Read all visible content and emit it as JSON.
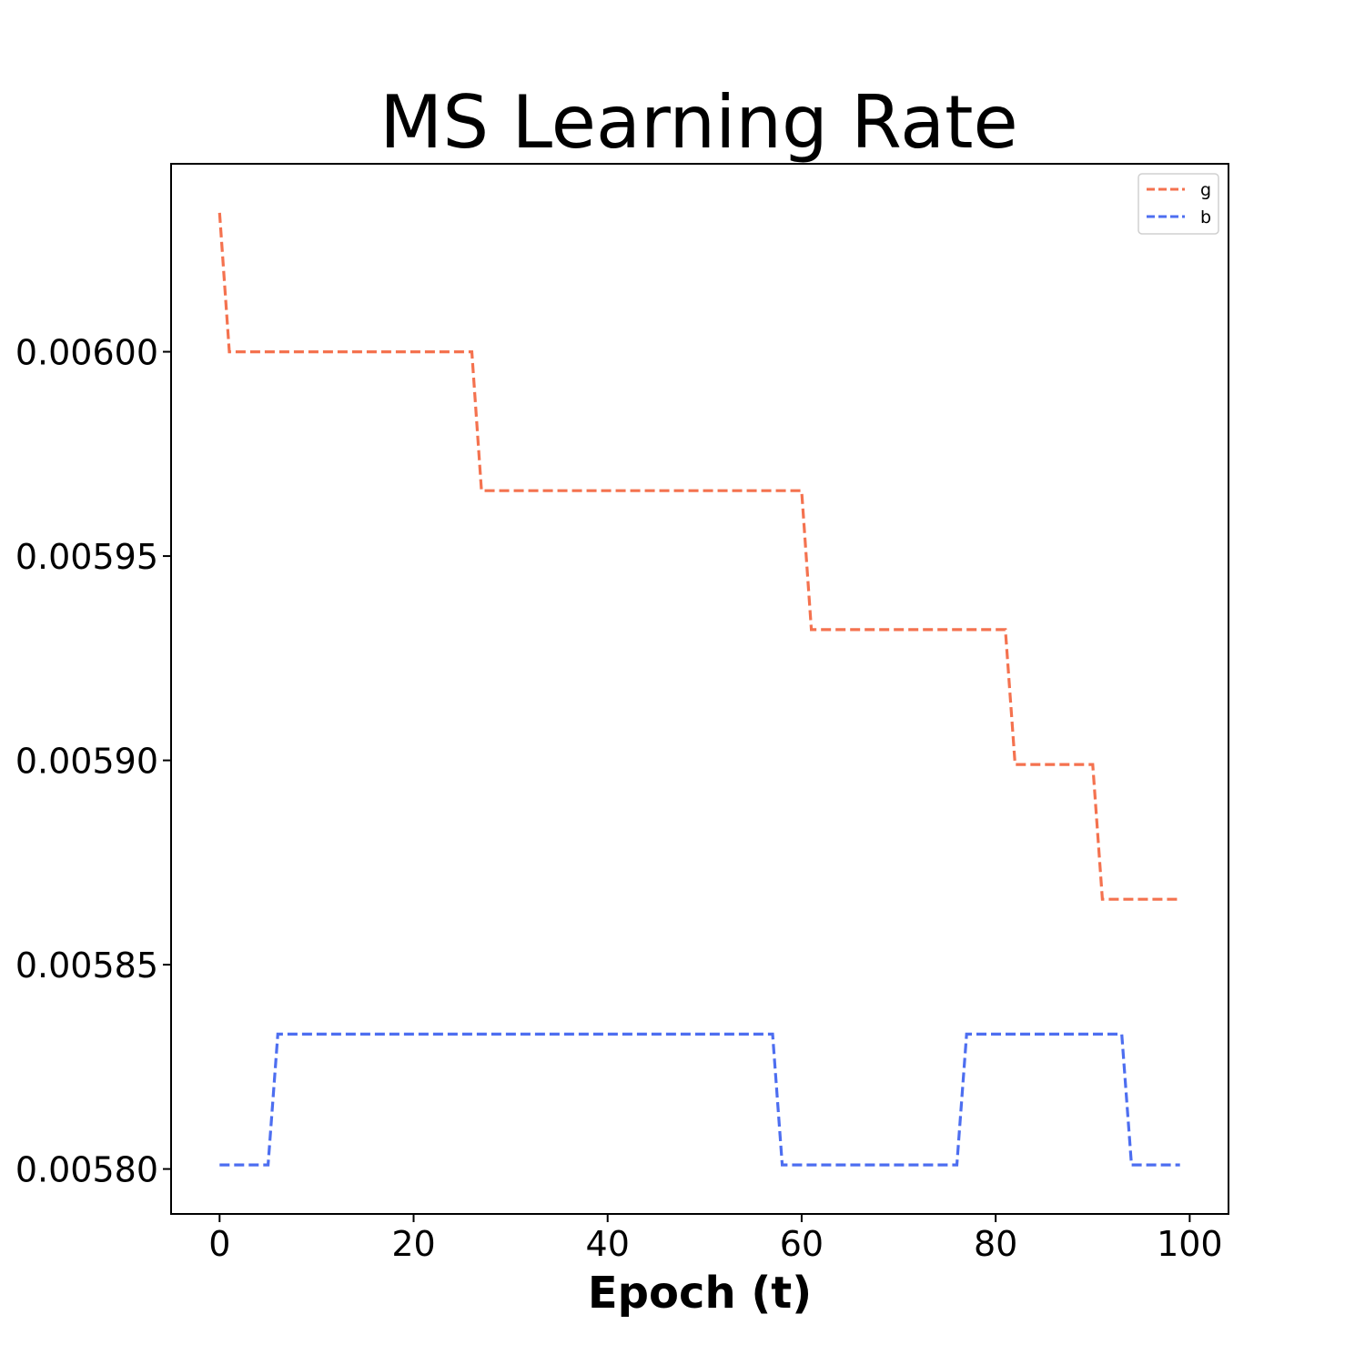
{
  "chart_data": {
    "type": "line",
    "title": "MS Learning Rate",
    "xlabel": "Epoch (t)",
    "ylabel": "",
    "xlim": [
      -5,
      104
    ],
    "ylim": [
      0.005789,
      0.006046
    ],
    "xticks": [
      0,
      20,
      40,
      60,
      80,
      100
    ],
    "xtick_labels": [
      "0",
      "20",
      "40",
      "60",
      "80",
      "100"
    ],
    "yticks": [
      0.0058,
      0.00585,
      0.0059,
      0.00595,
      0.006
    ],
    "ytick_labels": [
      "0.00580",
      "0.00585",
      "0.00590",
      "0.00595",
      "0.00600"
    ],
    "legend_position": "top-right",
    "line_style": "dashed",
    "series": [
      {
        "name": "g",
        "color": "#f4724f",
        "x": [
          0,
          1,
          26,
          27,
          60,
          61,
          81,
          82,
          90,
          91,
          99
        ],
        "y": [
          0.006034,
          0.006,
          0.006,
          0.005966,
          0.005966,
          0.005932,
          0.005932,
          0.005899,
          0.005899,
          0.005866,
          0.005866
        ]
      },
      {
        "name": "b",
        "color": "#4d6ef0",
        "x": [
          0,
          5,
          6,
          57,
          58,
          76,
          77,
          93,
          94,
          99
        ],
        "y": [
          0.005801,
          0.005801,
          0.005833,
          0.005833,
          0.005801,
          0.005801,
          0.005833,
          0.005833,
          0.005801,
          0.005801
        ]
      }
    ]
  }
}
